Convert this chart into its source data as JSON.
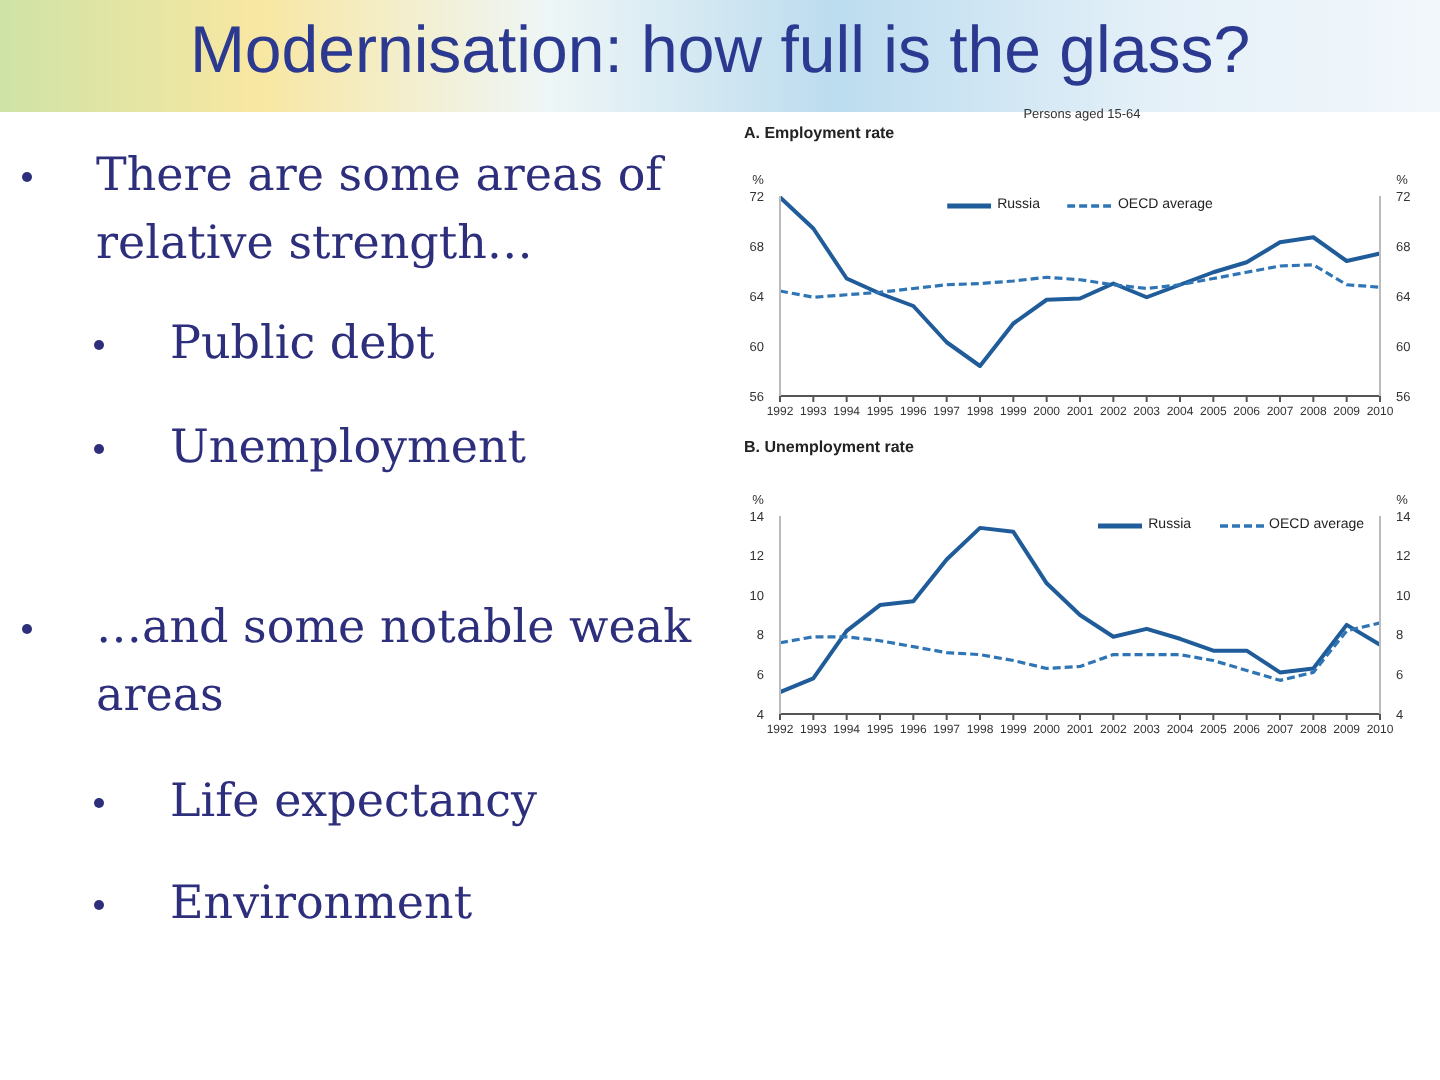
{
  "chart_data": [
    {
      "type": "other",
      "title": "Modernisation: how full is the glass?",
      "annotations": [
        "There are some areas of relative strength…",
        "Public debt",
        "Unemployment",
        "…and some notable weak areas",
        "Life expectancy",
        "Environment"
      ]
    },
    {
      "type": "line",
      "subtitle": "Persons aged 15-64",
      "title": "A. Employment rate",
      "ylabel": "%",
      "y2label": "%",
      "categories": [
        "1992",
        "1993",
        "1994",
        "1995",
        "1996",
        "1997",
        "1998",
        "1999",
        "2000",
        "2001",
        "2002",
        "2003",
        "2004",
        "2005",
        "2006",
        "2007",
        "2008",
        "2009",
        "2010"
      ],
      "series": [
        {
          "name": "Russia",
          "color": "#1f5c99",
          "values": [
            71.9,
            69.4,
            65.4,
            64.2,
            63.2,
            60.3,
            58.4,
            61.8,
            63.7,
            63.8,
            65.0,
            63.9,
            64.9,
            65.9,
            66.7,
            68.3,
            68.7,
            66.8,
            67.4
          ]
        },
        {
          "name": "OECD average",
          "color": "#2f75b5",
          "line_style": "dashed",
          "values": [
            64.4,
            63.9,
            64.1,
            64.3,
            64.6,
            64.9,
            65.0,
            65.2,
            65.5,
            65.3,
            64.9,
            64.6,
            64.9,
            65.4,
            65.9,
            66.4,
            66.5,
            64.9,
            64.7
          ]
        }
      ],
      "ylim": [
        56,
        72
      ],
      "yticks": [
        56,
        60,
        64,
        68,
        72
      ],
      "y2lim": [
        56,
        72
      ],
      "y2ticks": [
        56,
        60,
        64,
        68,
        72
      ],
      "legend": "top",
      "marker": "none",
      "line_style": "solid"
    },
    {
      "type": "line",
      "title": "B. Unemployment rate",
      "ylabel": "%",
      "y2label": "%",
      "categories": [
        "1992",
        "1993",
        "1994",
        "1995",
        "1996",
        "1997",
        "1998",
        "1999",
        "2000",
        "2001",
        "2002",
        "2003",
        "2004",
        "2005",
        "2006",
        "2007",
        "2008",
        "2009",
        "2010"
      ],
      "series": [
        {
          "name": "Russia",
          "color": "#1f5c99",
          "values": [
            5.1,
            5.8,
            8.2,
            9.5,
            9.7,
            11.8,
            13.4,
            13.2,
            10.6,
            9.0,
            7.9,
            8.3,
            7.8,
            7.2,
            7.2,
            6.1,
            6.3,
            8.5,
            7.5
          ]
        },
        {
          "name": "OECD average",
          "color": "#2f75b5",
          "line_style": "dashed",
          "values": [
            7.6,
            7.9,
            7.9,
            7.7,
            7.4,
            7.1,
            7.0,
            6.7,
            6.3,
            6.4,
            7.0,
            7.0,
            7.0,
            6.7,
            6.2,
            5.7,
            6.1,
            8.2,
            8.6
          ]
        }
      ],
      "ylim": [
        4,
        14
      ],
      "yticks": [
        4,
        6,
        8,
        10,
        12,
        14
      ],
      "y2lim": [
        4,
        14
      ],
      "y2ticks": [
        4,
        6,
        8,
        10,
        12,
        14
      ],
      "legend": "top right",
      "marker": "none",
      "line_style": "solid"
    }
  ]
}
